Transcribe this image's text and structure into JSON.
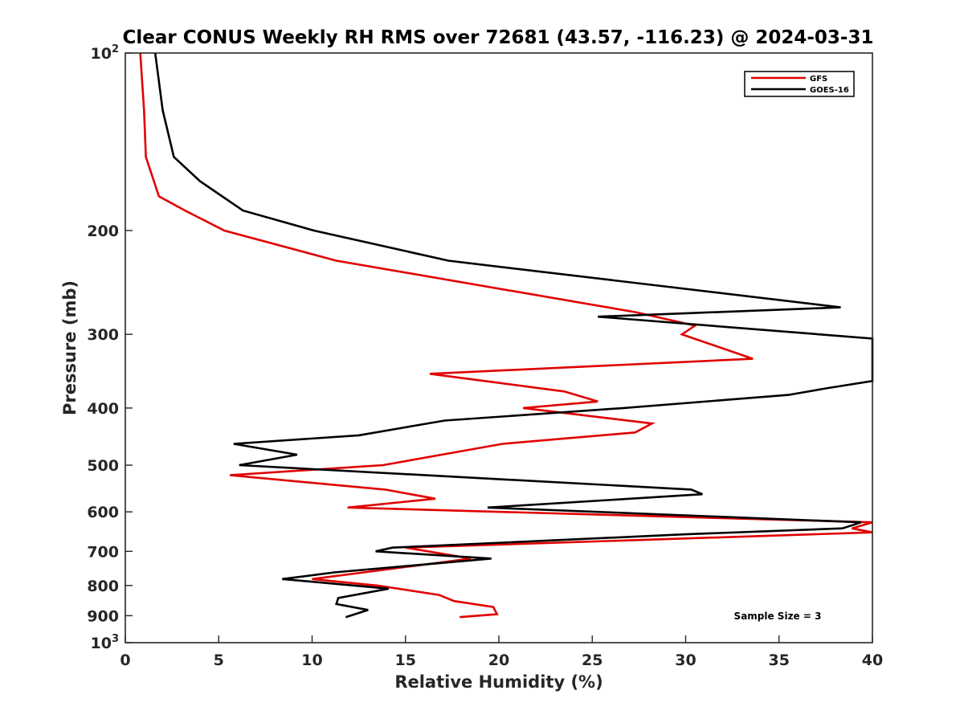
{
  "chart_data": {
    "type": "line",
    "title": "Clear CONUS Weekly RH RMS over 72681 (43.57, -116.23) @ 2024-03-31",
    "xlabel": "Relative Humidity (%)",
    "ylabel": "Pressure (mb)",
    "xlim": [
      0,
      40
    ],
    "ylim": [
      100,
      1000
    ],
    "yscale": "log",
    "y_reversed": true,
    "grid": false,
    "legend_position": "top-right",
    "x_ticks": [
      "0",
      "5",
      "10",
      "15",
      "20",
      "25",
      "30",
      "35",
      "40"
    ],
    "y_ticks": [
      {
        "value": 100,
        "label": "10",
        "sup": "2"
      },
      {
        "value": 200,
        "label": "200",
        "sup": ""
      },
      {
        "value": 300,
        "label": "300",
        "sup": ""
      },
      {
        "value": 400,
        "label": "400",
        "sup": ""
      },
      {
        "value": 500,
        "label": "500",
        "sup": ""
      },
      {
        "value": 600,
        "label": "600",
        "sup": ""
      },
      {
        "value": 700,
        "label": "700",
        "sup": ""
      },
      {
        "value": 800,
        "label": "800",
        "sup": ""
      },
      {
        "value": 900,
        "label": "900",
        "sup": ""
      },
      {
        "value": 1000,
        "label": "10",
        "sup": "3"
      }
    ],
    "series": [
      {
        "name": "GFS",
        "color": "#e00000",
        "points": [
          [
            0.8,
            100
          ],
          [
            1.0,
            125
          ],
          [
            1.1,
            150
          ],
          [
            1.8,
            175
          ],
          [
            3.2,
            185
          ],
          [
            5.3,
            200
          ],
          [
            11.3,
            225
          ],
          [
            27.3,
            275
          ],
          [
            30.5,
            290
          ],
          [
            29.8,
            300
          ],
          [
            33.6,
            330
          ],
          [
            16.3,
            350
          ],
          [
            23.5,
            375
          ],
          [
            25.3,
            390
          ],
          [
            21.3,
            400
          ],
          [
            28.2,
            425
          ],
          [
            27.3,
            440
          ],
          [
            20.2,
            460
          ],
          [
            13.8,
            500
          ],
          [
            5.6,
            520
          ],
          [
            13.9,
            550
          ],
          [
            16.6,
            570
          ],
          [
            11.9,
            590
          ],
          [
            40.0,
            625
          ],
          [
            38.9,
            640
          ],
          [
            40.0,
            650
          ],
          [
            15.0,
            690
          ],
          [
            18.5,
            720
          ],
          [
            10.0,
            780
          ],
          [
            13.5,
            800
          ],
          [
            16.8,
            830
          ],
          [
            17.6,
            850
          ],
          [
            19.7,
            870
          ],
          [
            19.9,
            895
          ],
          [
            17.9,
            905
          ]
        ]
      },
      {
        "name": "GOES-16",
        "color": "#000000",
        "points": [
          [
            1.6,
            100
          ],
          [
            2.0,
            125
          ],
          [
            2.6,
            150
          ],
          [
            4.0,
            165
          ],
          [
            6.3,
            185
          ],
          [
            10.1,
            200
          ],
          [
            17.3,
            225
          ],
          [
            38.3,
            270
          ],
          [
            25.3,
            280
          ],
          [
            40.0,
            305
          ],
          [
            40.0,
            360
          ],
          [
            37.6,
            370
          ],
          [
            35.5,
            380
          ],
          [
            26.7,
            400
          ],
          [
            17.1,
            420
          ],
          [
            12.5,
            445
          ],
          [
            5.8,
            460
          ],
          [
            9.2,
            480
          ],
          [
            6.1,
            500
          ],
          [
            30.3,
            550
          ],
          [
            30.9,
            560
          ],
          [
            19.4,
            590
          ],
          [
            39.4,
            625
          ],
          [
            38.4,
            640
          ],
          [
            30.0,
            655
          ],
          [
            14.3,
            690
          ],
          [
            13.4,
            700
          ],
          [
            19.6,
            720
          ],
          [
            11.2,
            760
          ],
          [
            8.4,
            780
          ],
          [
            14.1,
            810
          ],
          [
            11.4,
            840
          ],
          [
            11.3,
            860
          ],
          [
            13.0,
            880
          ],
          [
            11.8,
            905
          ]
        ]
      }
    ],
    "annotation": "Sample Size = 3"
  }
}
